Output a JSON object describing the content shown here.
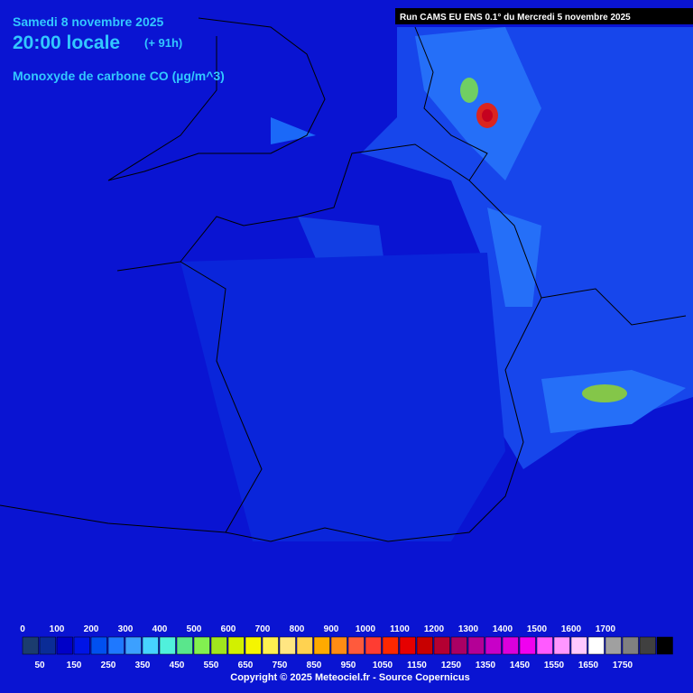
{
  "header": {
    "date": "Samedi 8 novembre 2025",
    "time": "20:00 locale",
    "lead": "(+ 91h)",
    "parameter": "Monoxyde de carbone CO (µg/m^3)",
    "run": "Run CAMS EU ENS 0.1° du Mercredi 5 novembre 2025"
  },
  "legend": {
    "top_labels": [
      0,
      100,
      200,
      300,
      400,
      500,
      600,
      700,
      800,
      900,
      1000,
      1100,
      1200,
      1300,
      1400,
      1500,
      1600,
      1700
    ],
    "bottom_labels": [
      50,
      150,
      250,
      350,
      450,
      550,
      650,
      750,
      850,
      950,
      1050,
      1150,
      1250,
      1350,
      1450,
      1550,
      1650,
      1750
    ],
    "colors": [
      "#1b3c6e",
      "#0a2c96",
      "#0000c8",
      "#0014e6",
      "#0050f0",
      "#1e78ff",
      "#3ca0ff",
      "#46d2ff",
      "#50f0dc",
      "#5ae68c",
      "#82f050",
      "#a0e61e",
      "#d2f000",
      "#f5f500",
      "#fff050",
      "#ffe682",
      "#ffd250",
      "#ffaa00",
      "#ff8c14",
      "#ff5a3c",
      "#ff3c32",
      "#ff2800",
      "#e60000",
      "#c80000",
      "#b40032",
      "#aa0064",
      "#b40096",
      "#c800c8",
      "#dc00dc",
      "#f000f0",
      "#ff5aff",
      "#ff96ff",
      "#ffc8ff",
      "#ffffff",
      "#a0a0a0",
      "#808080",
      "#404040",
      "#000000"
    ]
  },
  "footer": {
    "copyright": "Copyright © 2025 Meteociel.fr - Source Copernicus"
  }
}
